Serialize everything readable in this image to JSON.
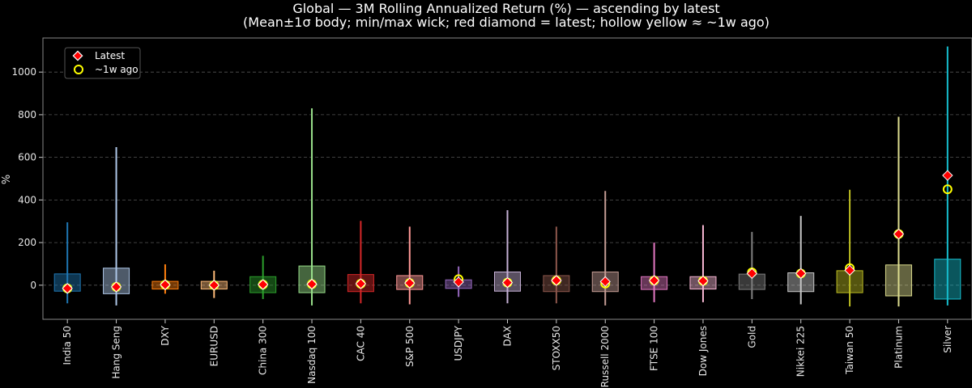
{
  "chart_data": {
    "type": "box",
    "title": "Global — 3M Rolling Annualized Return (%) — ascending by latest",
    "subtitle": "(Mean±1σ body; min/max wick; red diamond = latest; hollow yellow ≈ ~1w ago)",
    "xlabel": "",
    "ylabel": "%",
    "ylim": [
      -160,
      1160
    ],
    "yticks": [
      0,
      200,
      400,
      600,
      800,
      1000
    ],
    "grid": true,
    "legend": {
      "position": "top-left",
      "entries": [
        {
          "label": "Latest",
          "marker": "red-diamond"
        },
        {
          "label": "~1w ago",
          "marker": "hollow-yellow-circle"
        }
      ]
    },
    "categories": [
      "India 50",
      "Hang Seng",
      "DXY",
      "EURUSD",
      "China 300",
      "Nasdaq 100",
      "CAC 40",
      "S&P 500",
      "USDJPY",
      "DAX",
      "STOXX50",
      "Russell 2000",
      "FTSE 100",
      "Dow Jones",
      "Gold",
      "Nikkei 225",
      "Taiwan 50",
      "Platinum",
      "Silver"
    ],
    "colors": [
      "#1f77b4",
      "#aec7e8",
      "#ff7f0e",
      "#ffbb78",
      "#2ca02c",
      "#98df8a",
      "#d62728",
      "#ff9896",
      "#9467bd",
      "#c5b0d5",
      "#8c564b",
      "#c49c94",
      "#e377c2",
      "#f7b6d2",
      "#7f7f7f",
      "#c7c7c7",
      "#bcbd22",
      "#dbdb8d",
      "#17becf"
    ],
    "series": [
      {
        "name": "min",
        "values": [
          -85,
          -95,
          -40,
          -60,
          -65,
          -95,
          -85,
          -90,
          -55,
          -85,
          -85,
          -95,
          -80,
          -80,
          -65,
          -90,
          -100,
          -100,
          -95
        ]
      },
      {
        "name": "mean_minus_1sd",
        "values": [
          -28,
          -40,
          -18,
          -18,
          -35,
          -35,
          -30,
          -20,
          -15,
          -28,
          -30,
          -30,
          -20,
          -18,
          -20,
          -30,
          -35,
          -50,
          -65
        ]
      },
      {
        "name": "mean_plus_1sd",
        "values": [
          53,
          80,
          18,
          18,
          40,
          90,
          50,
          45,
          25,
          62,
          45,
          62,
          40,
          40,
          52,
          58,
          68,
          95,
          122
        ]
      },
      {
        "name": "max",
        "values": [
          295,
          648,
          98,
          68,
          138,
          830,
          302,
          275,
          88,
          352,
          275,
          442,
          200,
          282,
          250,
          325,
          448,
          790,
          1120
        ]
      },
      {
        "name": "latest",
        "values": [
          -15,
          -8,
          2,
          0,
          3,
          5,
          7,
          10,
          15,
          12,
          22,
          17,
          22,
          20,
          55,
          55,
          70,
          240,
          515
        ]
      },
      {
        "name": "week_ago",
        "values": [
          -15,
          -8,
          2,
          0,
          3,
          5,
          7,
          10,
          28,
          12,
          22,
          8,
          22,
          20,
          60,
          55,
          80,
          240,
          450
        ]
      }
    ]
  }
}
